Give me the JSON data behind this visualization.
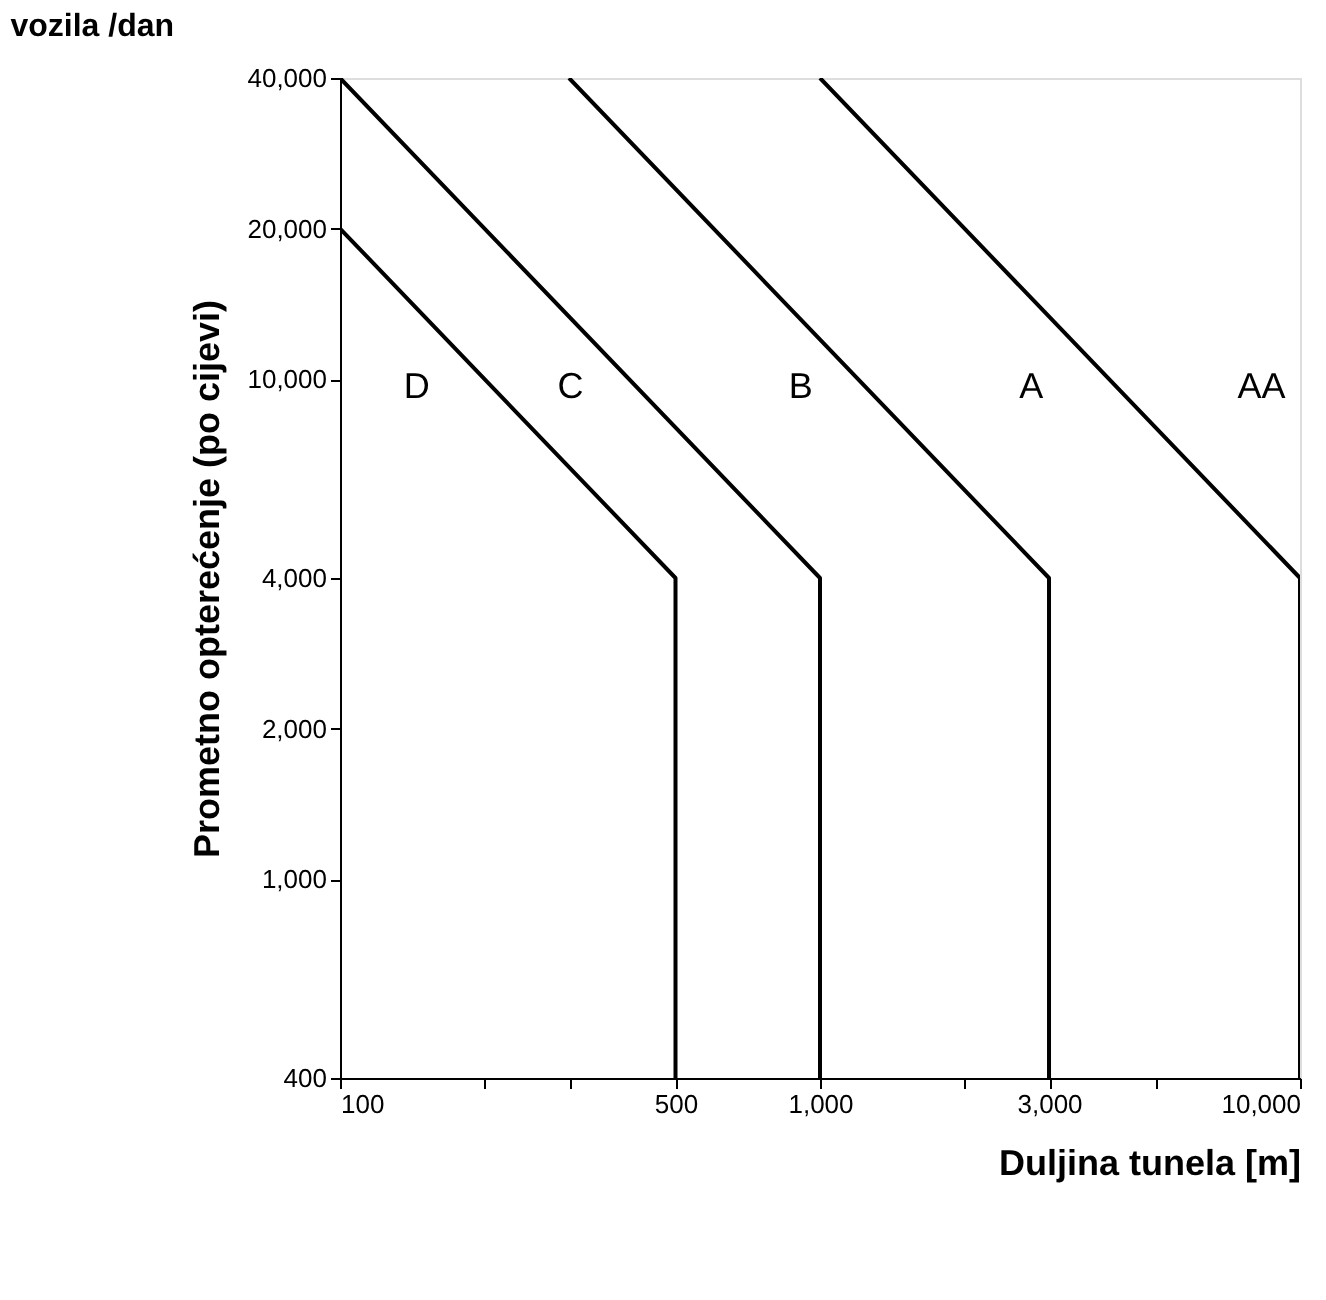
{
  "chart_data": {
    "type": "line",
    "title": "vozila /dan",
    "xlabel": "Duljina tunela [m]",
    "ylabel": "Prometno opterećenje (po cijevi)",
    "log": "xy",
    "grid": false,
    "legend": false,
    "marker": "none",
    "line_style": "solid",
    "xlim": [
      100,
      10000
    ],
    "ylim": [
      400,
      40000
    ],
    "xticks": [
      {
        "value": 100,
        "label": "100"
      },
      {
        "value": 200,
        "label": null
      },
      {
        "value": 300,
        "label": null
      },
      {
        "value": 500,
        "label": "500"
      },
      {
        "value": 1000,
        "label": "1,000"
      },
      {
        "value": 2000,
        "label": null
      },
      {
        "value": 3000,
        "label": "3,000"
      },
      {
        "value": 5000,
        "label": null
      },
      {
        "value": 10000,
        "label": "10,000"
      }
    ],
    "yticks": [
      {
        "value": 400,
        "label": "400"
      },
      {
        "value": 1000,
        "label": "1,000"
      },
      {
        "value": 2000,
        "label": "2,000"
      },
      {
        "value": 4000,
        "label": "4,000"
      },
      {
        "value": 10000,
        "label": "10,000"
      },
      {
        "value": 20000,
        "label": "20,000"
      },
      {
        "value": 40000,
        "label": "40,000"
      }
    ],
    "series": [
      {
        "color": "#000000",
        "x": [
          100,
          500,
          500
        ],
        "values": [
          20000,
          4000,
          400
        ]
      },
      {
        "color": "#000000",
        "x": [
          100,
          1000,
          1000
        ],
        "values": [
          40000,
          4000,
          400
        ]
      },
      {
        "color": "#000000",
        "x": [
          300,
          3000,
          3000
        ],
        "values": [
          40000,
          4000,
          400
        ]
      },
      {
        "color": "#000000",
        "x": [
          1000,
          10000,
          10000
        ],
        "values": [
          40000,
          4000,
          400
        ]
      }
    ],
    "annotations": [
      "D",
      "C",
      "B",
      "A",
      "AA"
    ]
  }
}
